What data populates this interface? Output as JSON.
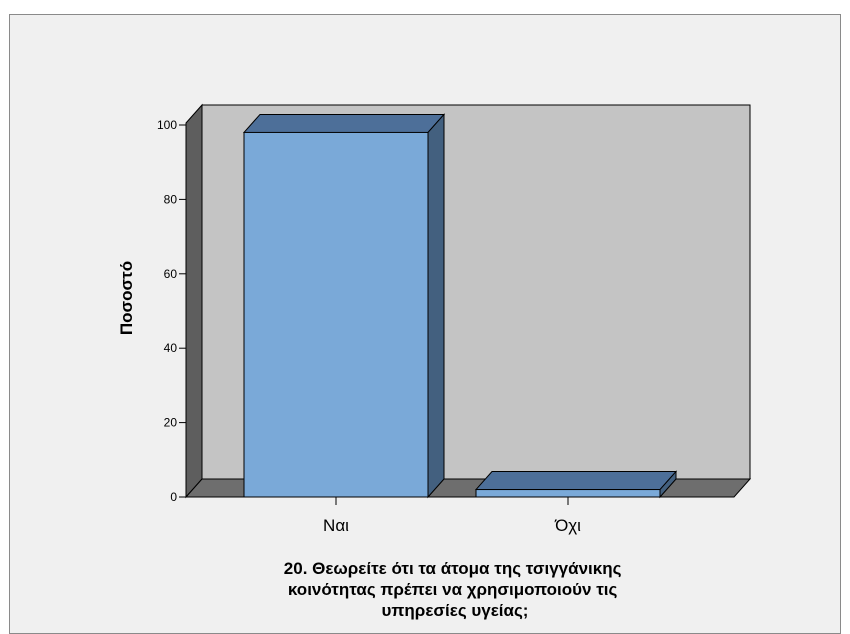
{
  "chart_data": {
    "type": "bar",
    "style": "3d",
    "categories": [
      "Ναι",
      "Όχι"
    ],
    "values": [
      98,
      2
    ],
    "ylabel": "Ποσοστό",
    "xlabel_lines": [
      "20. Θεωρείτε ότι τα άτομα της τσιγγάνικης",
      "κοινότητας πρέπει να χρησιμοποιούν τις",
      "υπηρεσίες υγείας;"
    ],
    "ylim": [
      0,
      100
    ],
    "yticks": [
      "0",
      "20",
      "40",
      "60",
      "80",
      "100"
    ],
    "grid": false,
    "legend": "none",
    "colors": {
      "bar_front": "#7aa9d8",
      "bar_top": "#4d6f99",
      "bar_side": "#43607f",
      "back_wall": "#c4c4c4",
      "side_wall": "#5e5e5e",
      "floor": "#6e6e6e",
      "frame_bg": "#f0f0f0"
    }
  }
}
